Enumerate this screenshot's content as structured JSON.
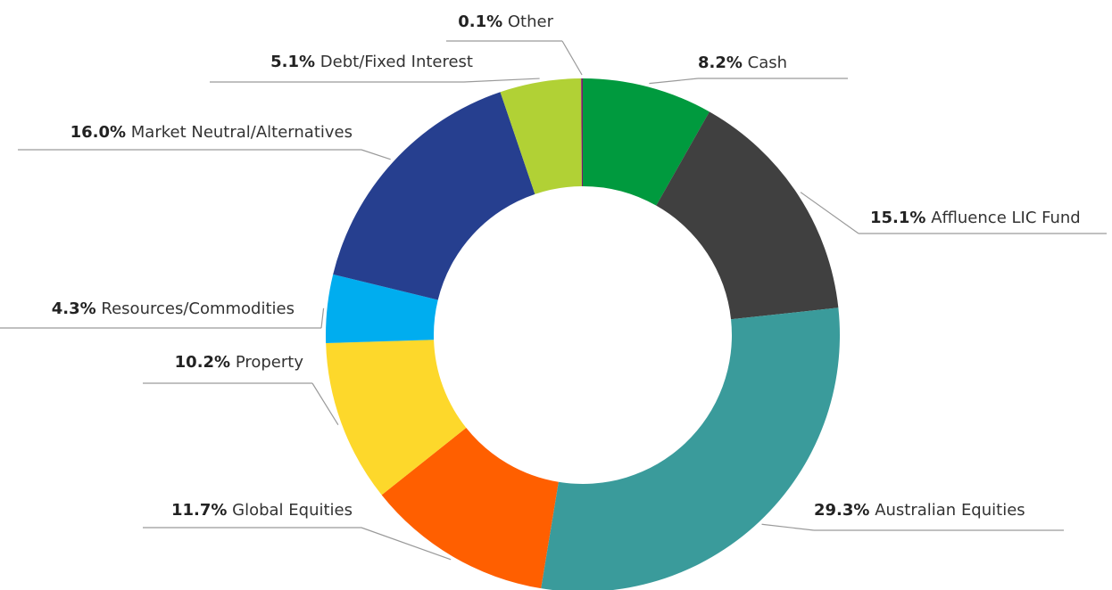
{
  "chart_data": {
    "type": "donut",
    "categories": [
      "Cash",
      "Affluence LIC Fund",
      "Australian Equities",
      "Global Equities",
      "Property",
      "Resources/Commodities",
      "Market Neutral/Alternatives",
      "Debt/Fixed Interest",
      "Other"
    ],
    "values": [
      8.2,
      15.1,
      29.3,
      11.7,
      10.2,
      4.3,
      16.0,
      5.1,
      0.1
    ],
    "value_labels": [
      "8.2%",
      "15.1%",
      "29.3%",
      "11.7%",
      "10.2%",
      "4.3%",
      "16.0%",
      "5.1%",
      "0.1%"
    ],
    "colors": [
      "#009a3e",
      "#404040",
      "#3a9b9b",
      "#ff5f00",
      "#fdd82b",
      "#00adef",
      "#263f8f",
      "#b1d135",
      "#7a1a6f"
    ]
  }
}
